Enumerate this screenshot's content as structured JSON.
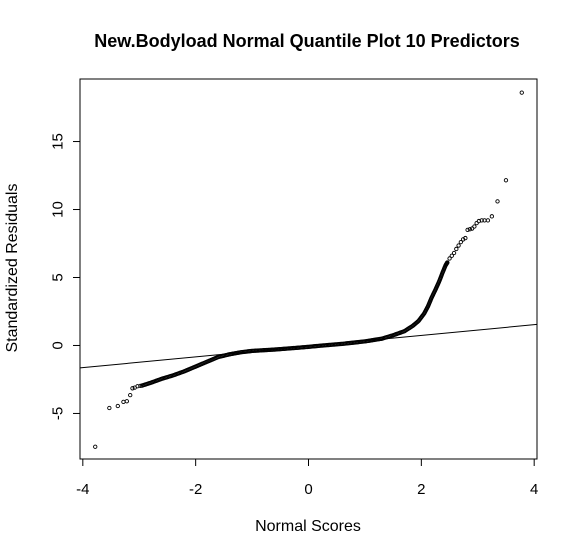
{
  "chart_data": {
    "type": "scatter",
    "title": "New.Bodyload Normal Quantile Plot 10 Predictors",
    "xlabel": "Normal Scores",
    "ylabel": "Standardized Residuals",
    "xlim": [
      -4.05,
      4.05
    ],
    "ylim": [
      -8.35,
      19.6
    ],
    "xticks": [
      -4,
      -2,
      0,
      2,
      4
    ],
    "xtick_labels": [
      "-4",
      "-2",
      "0",
      "2",
      "4"
    ],
    "yticks": [
      -5,
      0,
      5,
      10,
      15
    ],
    "ytick_labels": [
      "-5",
      "0",
      "5",
      "10",
      "15"
    ],
    "reference_line": {
      "intercept": -0.05,
      "slope": 0.395
    },
    "tail_points": [
      [
        -3.78,
        -7.45
      ],
      [
        -3.53,
        -4.6
      ],
      [
        -3.38,
        -4.45
      ],
      [
        -3.28,
        -4.15
      ],
      [
        -3.22,
        -4.1
      ],
      [
        -3.16,
        -3.65
      ],
      [
        -3.12,
        -3.15
      ],
      [
        -3.08,
        -3.1
      ],
      [
        -3.03,
        -3.0
      ],
      [
        -2.98,
        -2.97
      ],
      [
        3.78,
        18.6
      ],
      [
        3.5,
        12.15
      ],
      [
        3.35,
        10.6
      ],
      [
        3.25,
        9.5
      ],
      [
        3.18,
        9.2
      ],
      [
        3.12,
        9.2
      ],
      [
        3.07,
        9.2
      ],
      [
        3.02,
        9.15
      ],
      [
        2.98,
        9.0
      ],
      [
        2.94,
        8.75
      ],
      [
        2.9,
        8.6
      ],
      [
        2.86,
        8.55
      ],
      [
        2.82,
        8.5
      ],
      [
        2.78,
        7.9
      ],
      [
        2.74,
        7.8
      ],
      [
        2.7,
        7.6
      ],
      [
        2.66,
        7.35
      ],
      [
        2.62,
        7.1
      ],
      [
        2.58,
        6.8
      ],
      [
        2.54,
        6.6
      ],
      [
        2.5,
        6.4
      ],
      [
        2.46,
        6.1
      ]
    ],
    "body_curve": [
      [
        -2.95,
        -2.95
      ],
      [
        -2.8,
        -2.75
      ],
      [
        -2.6,
        -2.45
      ],
      [
        -2.4,
        -2.2
      ],
      [
        -2.2,
        -1.9
      ],
      [
        -2.0,
        -1.55
      ],
      [
        -1.8,
        -1.2
      ],
      [
        -1.6,
        -0.85
      ],
      [
        -1.4,
        -0.65
      ],
      [
        -1.2,
        -0.5
      ],
      [
        -1.0,
        -0.4
      ],
      [
        -0.6,
        -0.3
      ],
      [
        -0.2,
        -0.17
      ],
      [
        0.0,
        -0.1
      ],
      [
        0.2,
        -0.02
      ],
      [
        0.6,
        0.12
      ],
      [
        1.0,
        0.3
      ],
      [
        1.3,
        0.5
      ],
      [
        1.5,
        0.75
      ],
      [
        1.7,
        1.05
      ],
      [
        1.85,
        1.45
      ],
      [
        1.95,
        1.8
      ],
      [
        2.05,
        2.35
      ],
      [
        2.12,
        2.9
      ],
      [
        2.18,
        3.5
      ],
      [
        2.25,
        4.1
      ],
      [
        2.32,
        4.75
      ],
      [
        2.38,
        5.4
      ],
      [
        2.43,
        5.9
      ],
      [
        2.46,
        6.1
      ]
    ]
  }
}
